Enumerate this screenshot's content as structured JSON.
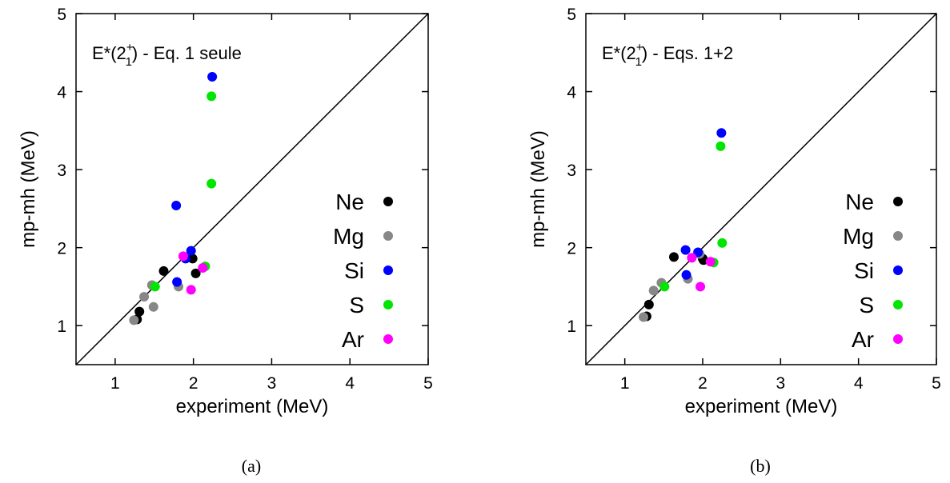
{
  "colors": {
    "Ne": "#000000",
    "Mg": "#878787",
    "Si": "#0000ff",
    "S": "#00e600",
    "Ar": "#ff00ff"
  },
  "chart_data": [
    {
      "type": "scatter",
      "caption": "(a)",
      "annotation": {
        "prefix": "E*(2",
        "sup": "+",
        "sub": "1",
        "suffix": ") - Eq. 1 seule"
      },
      "xlabel": "experiment (MeV)",
      "ylabel": "mp-mh (MeV)",
      "xlim": [
        0.5,
        5
      ],
      "ylim": [
        0.5,
        5
      ],
      "xticks": [
        1,
        2,
        3,
        4,
        5
      ],
      "yticks": [
        1,
        2,
        3,
        4,
        5
      ],
      "diagonal": true,
      "legend_position": "right",
      "series": [
        {
          "name": "Ne",
          "points": [
            [
              1.28,
              1.08
            ],
            [
              1.31,
              1.18
            ],
            [
              1.62,
              1.7
            ],
            [
              1.99,
              1.86
            ],
            [
              2.03,
              1.67
            ]
          ]
        },
        {
          "name": "Mg",
          "points": [
            [
              1.24,
              1.07
            ],
            [
              1.37,
              1.37
            ],
            [
              1.47,
              1.52
            ],
            [
              1.49,
              1.24
            ],
            [
              1.81,
              1.5
            ]
          ]
        },
        {
          "name": "Si",
          "points": [
            [
              1.78,
              2.54
            ],
            [
              1.79,
              1.56
            ],
            [
              1.9,
              1.86
            ],
            [
              1.97,
              1.96
            ],
            [
              2.24,
              4.19
            ]
          ]
        },
        {
          "name": "S",
          "points": [
            [
              1.51,
              1.5
            ],
            [
              2.15,
              1.76
            ],
            [
              2.23,
              2.82
            ],
            [
              2.23,
              3.94
            ]
          ]
        },
        {
          "name": "Ar",
          "points": [
            [
              1.87,
              1.89
            ],
            [
              1.97,
              1.46
            ],
            [
              2.12,
              1.74
            ]
          ]
        }
      ]
    },
    {
      "type": "scatter",
      "caption": "(b)",
      "annotation": {
        "prefix": "E*(2",
        "sup": "+",
        "sub": "1",
        "suffix": ") - Eqs. 1+2"
      },
      "xlabel": "experiment (MeV)",
      "ylabel": "mp-mh (MeV)",
      "xlim": [
        0.5,
        5
      ],
      "ylim": [
        0.5,
        5
      ],
      "xticks": [
        1,
        2,
        3,
        4,
        5
      ],
      "yticks": [
        1,
        2,
        3,
        4,
        5
      ],
      "diagonal": true,
      "legend_position": "right",
      "series": [
        {
          "name": "Ne",
          "points": [
            [
              1.28,
              1.12
            ],
            [
              1.31,
              1.27
            ],
            [
              1.63,
              1.88
            ],
            [
              2.0,
              1.86
            ],
            [
              2.01,
              1.84
            ]
          ]
        },
        {
          "name": "Mg",
          "points": [
            [
              1.24,
              1.11
            ],
            [
              1.37,
              1.45
            ],
            [
              1.47,
              1.55
            ],
            [
              1.81,
              1.6
            ],
            [
              1.96,
              1.92
            ]
          ]
        },
        {
          "name": "Si",
          "points": [
            [
              1.78,
              1.97
            ],
            [
              1.79,
              1.65
            ],
            [
              1.94,
              1.94
            ],
            [
              2.24,
              3.47
            ]
          ]
        },
        {
          "name": "S",
          "points": [
            [
              1.51,
              1.5
            ],
            [
              2.14,
              1.81
            ],
            [
              2.23,
              3.3
            ],
            [
              2.25,
              2.06
            ]
          ]
        },
        {
          "name": "Ar",
          "points": [
            [
              1.86,
              1.87
            ],
            [
              1.97,
              1.5
            ],
            [
              2.1,
              1.82
            ]
          ]
        }
      ]
    }
  ]
}
